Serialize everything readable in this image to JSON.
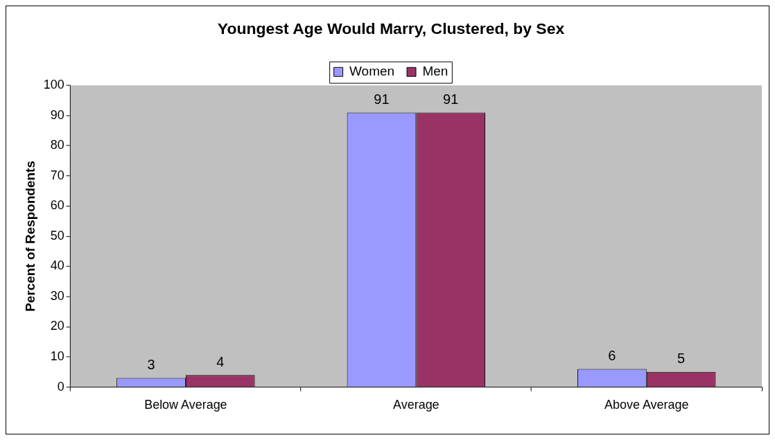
{
  "chart_data": {
    "type": "bar",
    "title": "Youngest Age Would Marry, Clustered, by Sex",
    "ylabel": "Percent of Respondents",
    "categories": [
      "Below Average",
      "Average",
      "Above Average"
    ],
    "series": [
      {
        "name": "Women",
        "color": "#9999ff",
        "values": [
          3,
          91,
          6
        ]
      },
      {
        "name": "Men",
        "color": "#993366",
        "values": [
          4,
          91,
          5
        ]
      }
    ],
    "ylim": [
      0,
      100
    ],
    "yticks": [
      0,
      10,
      20,
      30,
      40,
      50,
      60,
      70,
      80,
      90,
      100
    ],
    "grid": false,
    "legend": "top",
    "data_labels": true
  }
}
